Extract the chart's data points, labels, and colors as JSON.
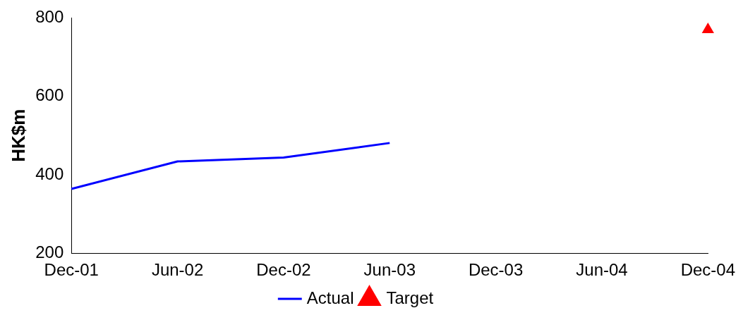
{
  "chart_data": {
    "type": "line",
    "ylabel": "HK$m",
    "categories": [
      "Dec-01",
      "Jun-02",
      "Dec-02",
      "Jun-03",
      "Dec-03",
      "Jun-04",
      "Dec-04"
    ],
    "series": [
      {
        "name": "Actual",
        "color": "#0000ff",
        "marker": "none",
        "line_style": "solid",
        "values": [
          364,
          434,
          444,
          481,
          null,
          null,
          null
        ]
      },
      {
        "name": "Target",
        "color": "#ff0000",
        "marker": "triangle",
        "values": [
          null,
          null,
          null,
          null,
          null,
          null,
          770
        ]
      }
    ],
    "ylim": [
      200,
      800
    ],
    "yticks": [
      200,
      400,
      600,
      800
    ],
    "grid": false,
    "legend": "bottom"
  }
}
